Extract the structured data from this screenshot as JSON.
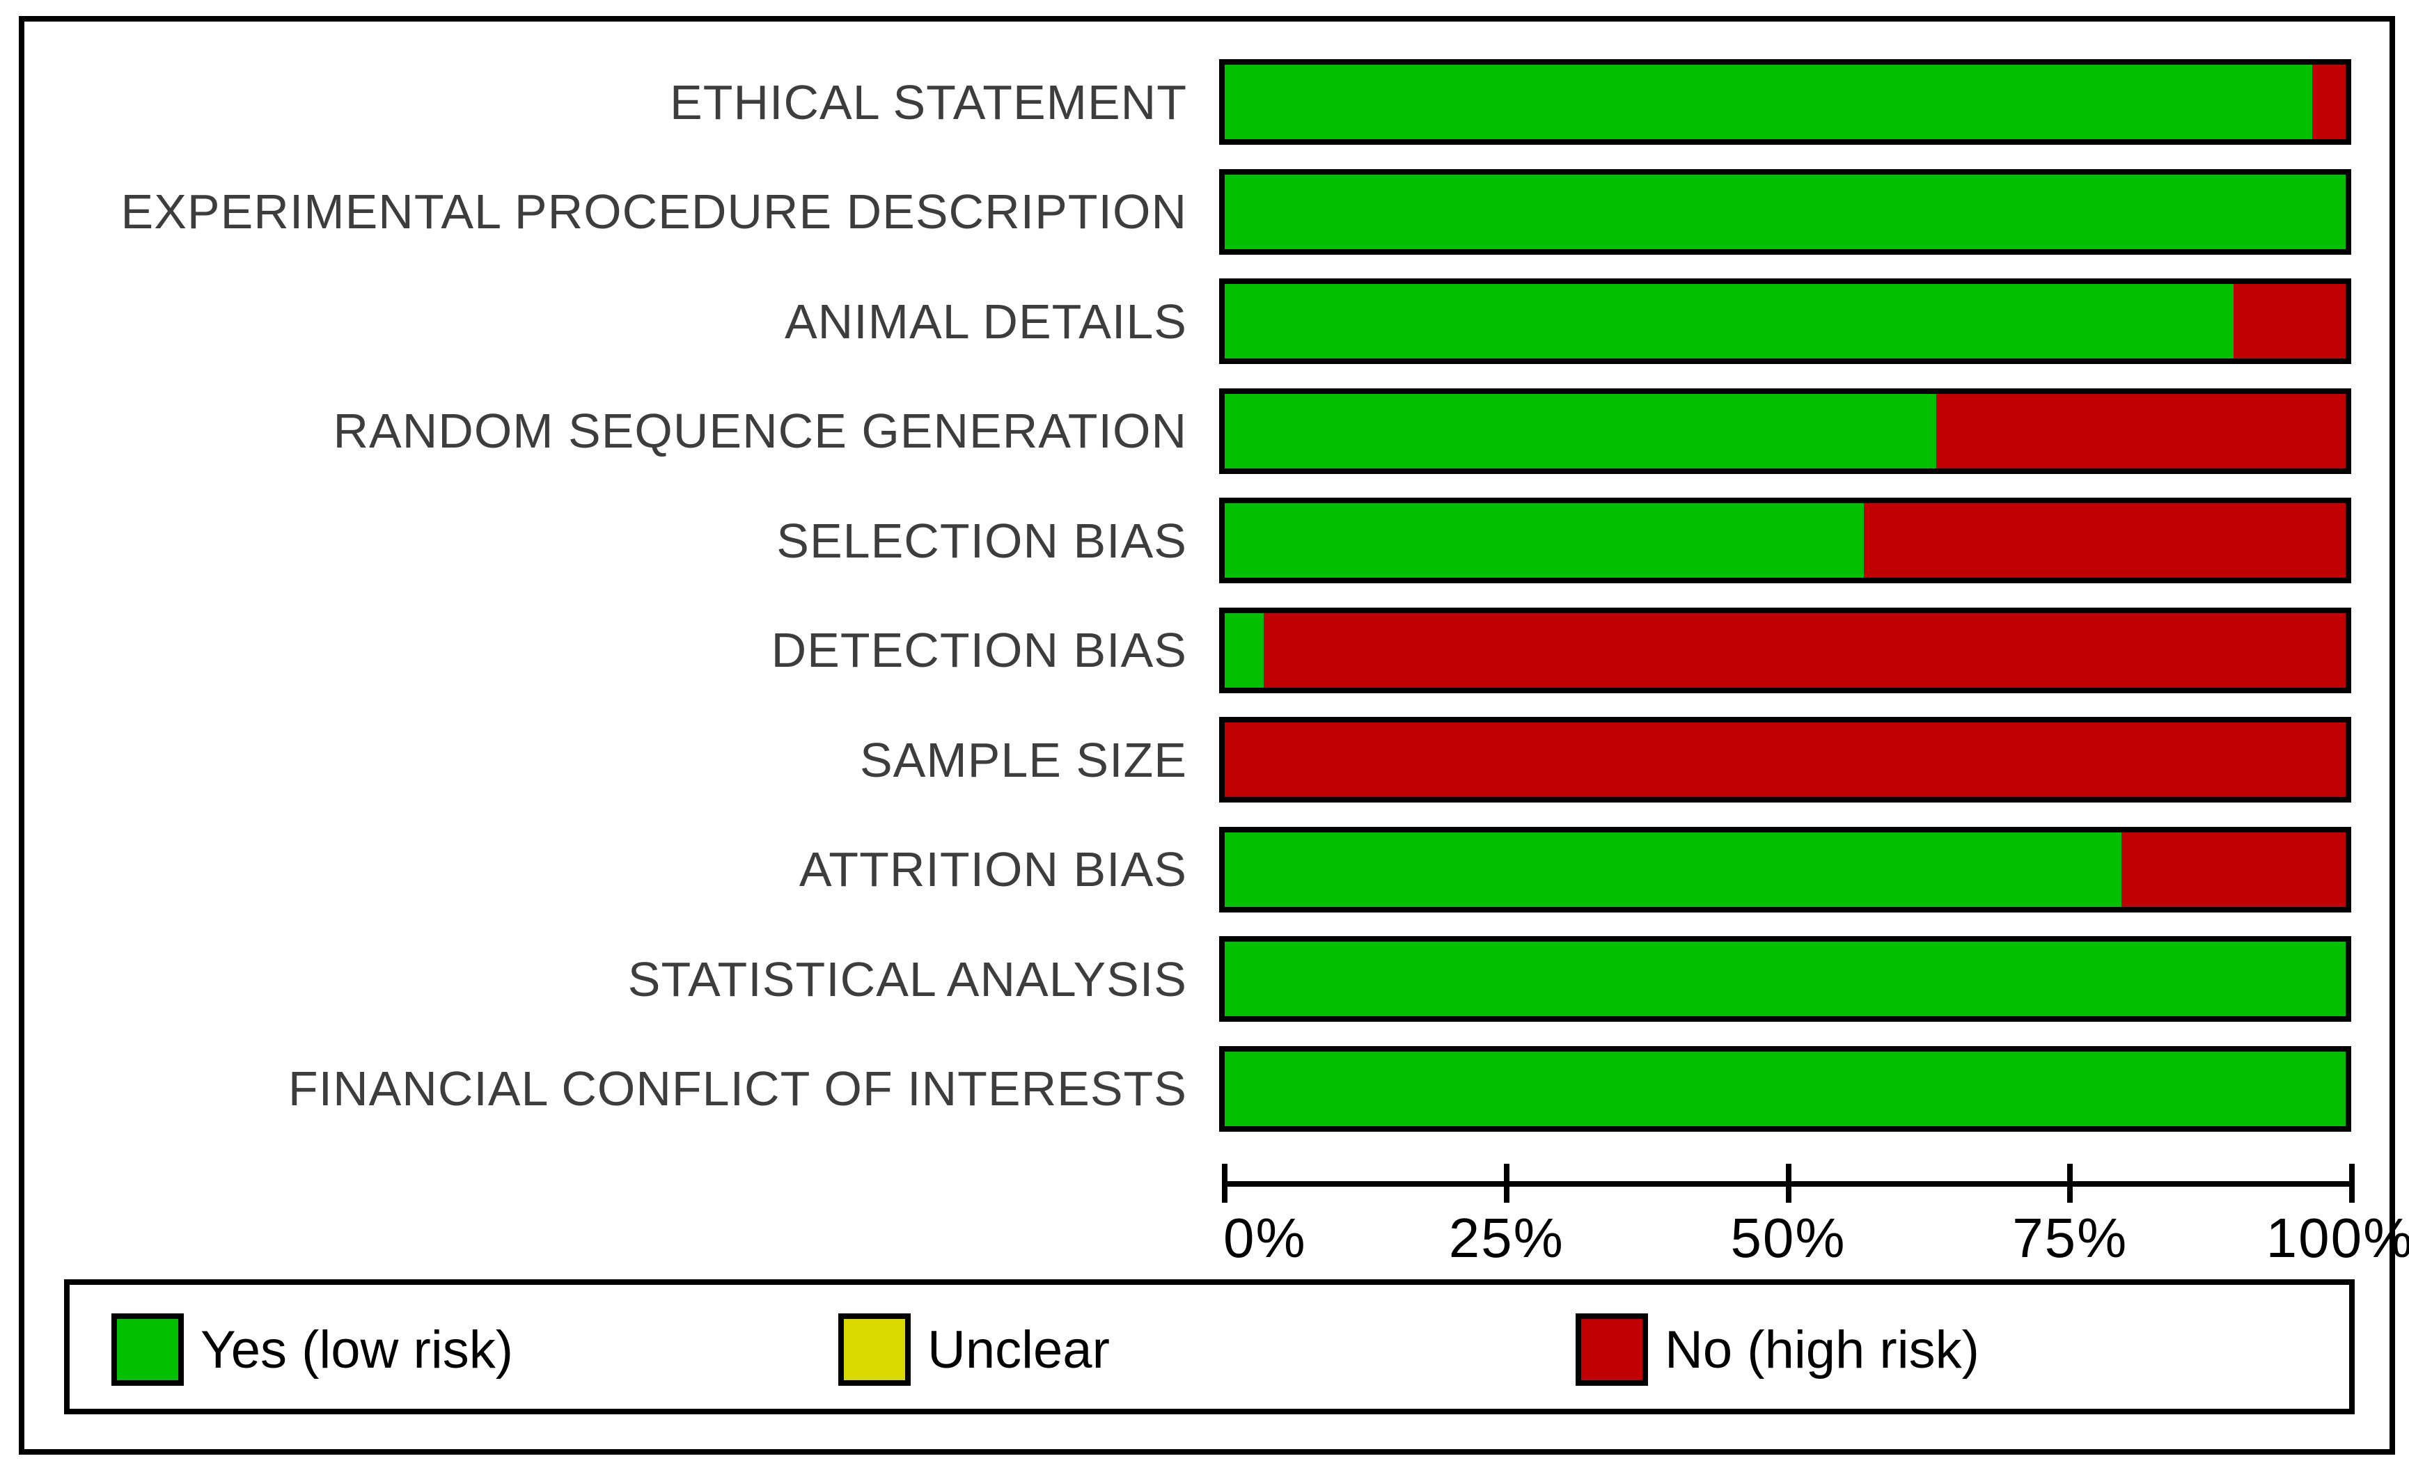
{
  "figure": {
    "kind": "risk-of-bias-summary-graph",
    "background": "#ffffff",
    "frame_border_color": "#000000",
    "category_label_color": "#3d3d3d",
    "axis_text_color": "#000000"
  },
  "chart_data": {
    "type": "bar",
    "orientation": "horizontal",
    "stacked": true,
    "grid": false,
    "legend_position": "bottom",
    "categories": [
      "ETHICAL STATEMENT",
      "EXPERIMENTAL PROCEDURE DESCRIPTION",
      "ANIMAL DETAILS",
      "RANDOM SEQUENCE GENERATION",
      "SELECTION BIAS",
      "DETECTION BIAS",
      "SAMPLE SIZE",
      "ATTRITION BIAS",
      "STATISTICAL ANALYSIS",
      "FINANCIAL CONFLICT OF INTERESTS"
    ],
    "series": [
      {
        "name": "Yes (low risk)",
        "color": "#00c000",
        "values": [
          97,
          100,
          90,
          63.5,
          57,
          3.5,
          0,
          80,
          100,
          100
        ]
      },
      {
        "name": "Unclear",
        "color": "#d9d900",
        "values": [
          0,
          0,
          0,
          0,
          0,
          0,
          0,
          0,
          0,
          0
        ]
      },
      {
        "name": "No (high risk)",
        "color": "#c00000",
        "values": [
          3,
          0,
          10,
          36.5,
          43,
          96.5,
          100,
          20,
          0,
          0
        ]
      }
    ],
    "xlabel": "",
    "ylabel": "",
    "xlim": [
      0,
      100
    ],
    "x_ticks": [
      "0%",
      "25%",
      "50%",
      "75%",
      "100%"
    ]
  },
  "legend": {
    "items": [
      {
        "label": "Yes (low risk)",
        "color": "#00c000",
        "key": "yes"
      },
      {
        "label": "Unclear",
        "color": "#d9d900",
        "key": "unclear"
      },
      {
        "label": "No (high risk)",
        "color": "#c00000",
        "key": "no"
      }
    ]
  }
}
